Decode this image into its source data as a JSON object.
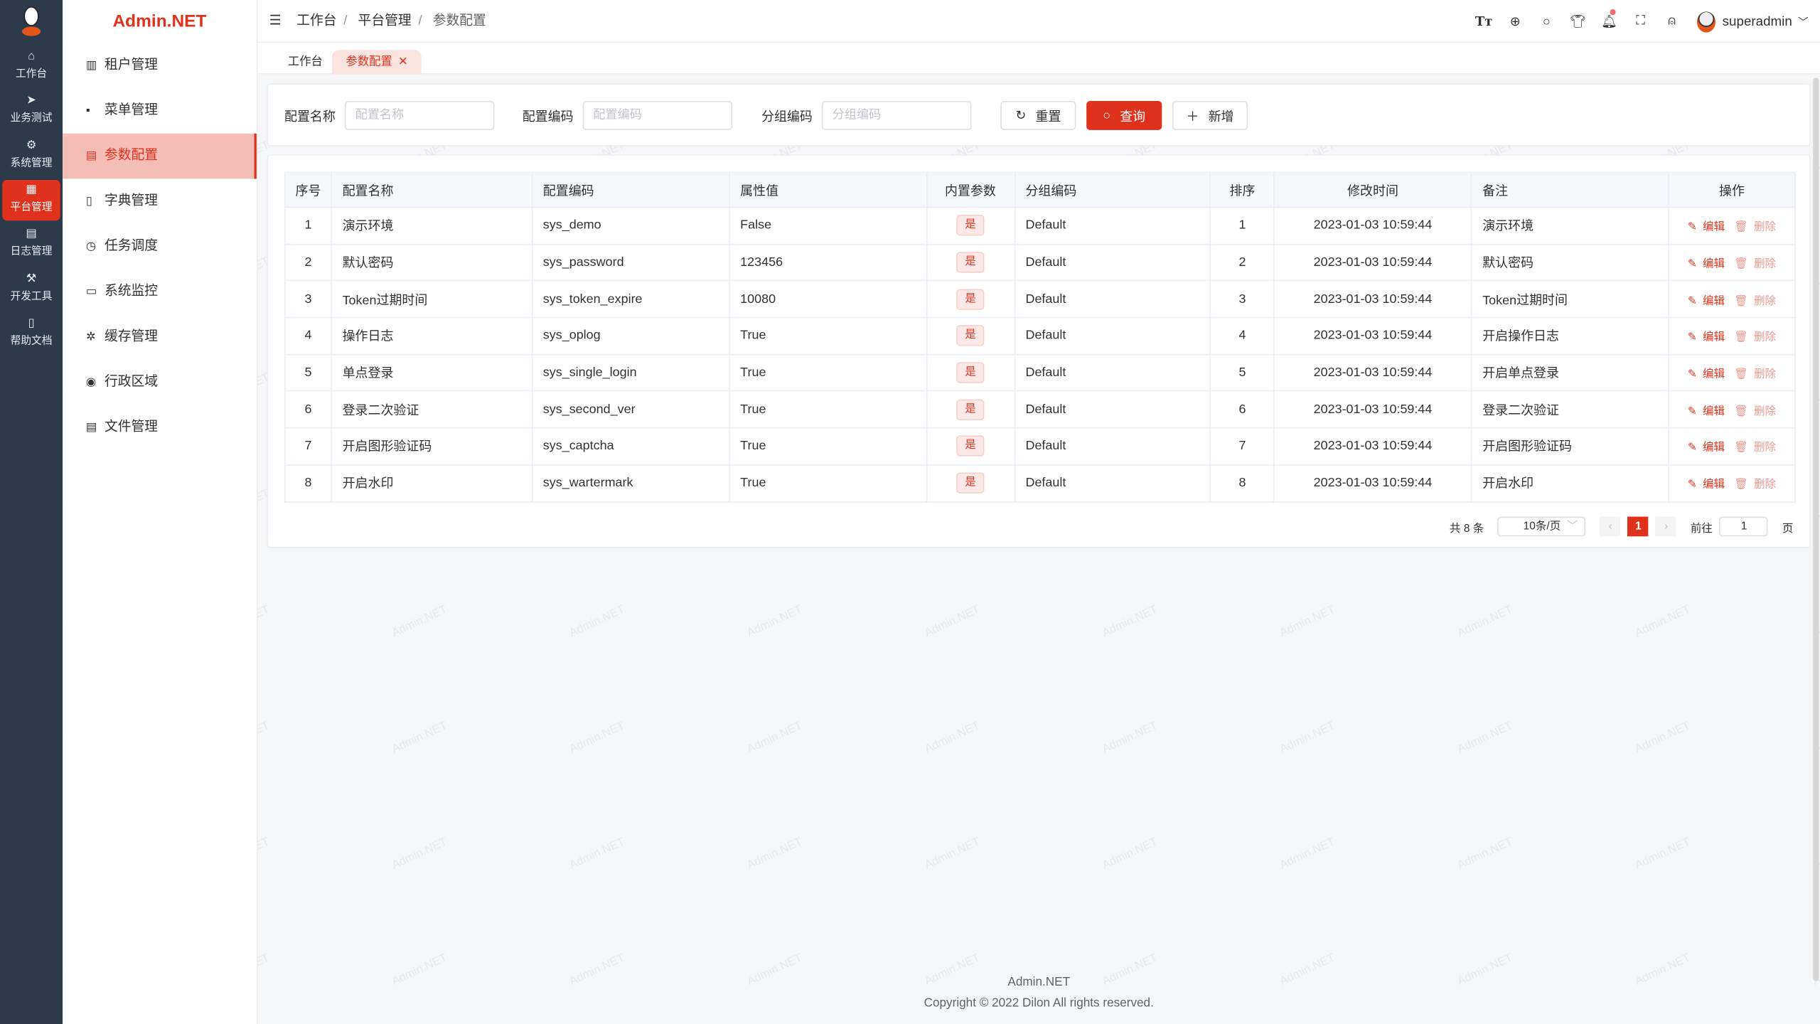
{
  "brand": "Admin.NET",
  "watermark": "Admin.NET",
  "rail": [
    {
      "label": "工作台",
      "icon": "home-icon"
    },
    {
      "label": "业务测试",
      "icon": "send-icon"
    },
    {
      "label": "系统管理",
      "icon": "gear-icon"
    },
    {
      "label": "平台管理",
      "icon": "grid-icon",
      "active": true
    },
    {
      "label": "日志管理",
      "icon": "document-icon"
    },
    {
      "label": "开发工具",
      "icon": "tool-icon"
    },
    {
      "label": "帮助文档",
      "icon": "book-icon"
    }
  ],
  "sidebar": {
    "items": [
      {
        "label": "租户管理"
      },
      {
        "label": "菜单管理"
      },
      {
        "label": "参数配置",
        "active": true
      },
      {
        "label": "字典管理"
      },
      {
        "label": "任务调度"
      },
      {
        "label": "系统监控"
      },
      {
        "label": "缓存管理"
      },
      {
        "label": "行政区域"
      },
      {
        "label": "文件管理"
      }
    ]
  },
  "breadcrumb": [
    "工作台",
    "平台管理",
    "参数配置"
  ],
  "header": {
    "user": "superadmin"
  },
  "tabs": [
    "工作台",
    "参数配置"
  ],
  "search": {
    "name_label": "配置名称",
    "name_placeholder": "配置名称",
    "code_label": "配置编码",
    "code_placeholder": "配置编码",
    "group_label": "分组编码",
    "group_placeholder": "分组编码",
    "reset": "重置",
    "query": "查询",
    "add": "新增"
  },
  "table": {
    "columns": [
      "序号",
      "配置名称",
      "配置编码",
      "属性值",
      "内置参数",
      "分组编码",
      "排序",
      "修改时间",
      "备注",
      "操作"
    ],
    "edit": "编辑",
    "delete": "删除",
    "rows": [
      [
        "1",
        "演示环境",
        "sys_demo",
        "False",
        "是",
        "Default",
        "1",
        "2023-01-03 10:59:44",
        "演示环境"
      ],
      [
        "2",
        "默认密码",
        "sys_password",
        "123456",
        "是",
        "Default",
        "2",
        "2023-01-03 10:59:44",
        "默认密码"
      ],
      [
        "3",
        "Token过期时间",
        "sys_token_expire",
        "10080",
        "是",
        "Default",
        "3",
        "2023-01-03 10:59:44",
        "Token过期时间"
      ],
      [
        "4",
        "操作日志",
        "sys_oplog",
        "True",
        "是",
        "Default",
        "4",
        "2023-01-03 10:59:44",
        "开启操作日志"
      ],
      [
        "5",
        "单点登录",
        "sys_single_login",
        "True",
        "是",
        "Default",
        "5",
        "2023-01-03 10:59:44",
        "开启单点登录"
      ],
      [
        "6",
        "登录二次验证",
        "sys_second_ver",
        "True",
        "是",
        "Default",
        "6",
        "2023-01-03 10:59:44",
        "登录二次验证"
      ],
      [
        "7",
        "开启图形验证码",
        "sys_captcha",
        "True",
        "是",
        "Default",
        "7",
        "2023-01-03 10:59:44",
        "开启图形验证码"
      ],
      [
        "8",
        "开启水印",
        "sys_wartermark",
        "True",
        "是",
        "Default",
        "8",
        "2023-01-03 10:59:44",
        "开启水印"
      ]
    ]
  },
  "pagination": {
    "total": "共 8 条",
    "page_size": "10条/页",
    "current": "1",
    "goto_label": "前往",
    "goto_value": "1",
    "page_suffix": "页"
  },
  "footer": {
    "name": "Admin.NET",
    "copyright": "Copyright © 2022 Dilon All rights reserved."
  },
  "colors": {
    "accent": "#e0311d",
    "rail": "#2d3a4b"
  }
}
